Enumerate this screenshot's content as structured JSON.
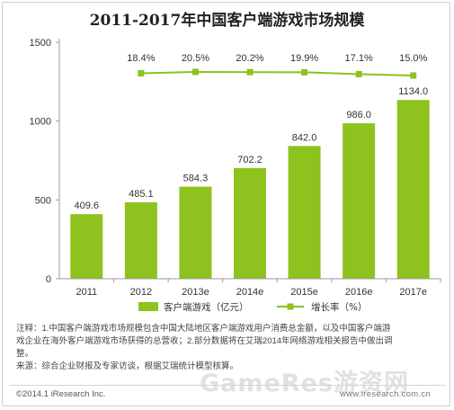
{
  "header": {
    "title": "2011-2017年中国客户端游戏市场规模"
  },
  "colors": {
    "bar": "#8dc21f",
    "line": "#8dc21f",
    "axis": "#999999"
  },
  "chart_data": {
    "type": "bar",
    "title": "2011-2017年中国客户端游戏市场规模",
    "categories": [
      "2011",
      "2012",
      "2013e",
      "2014e",
      "2015e",
      "2016e",
      "2017e"
    ],
    "yticks": [
      "0",
      "500",
      "1000",
      "1500"
    ],
    "ylim": [
      0,
      1500
    ],
    "series": [
      {
        "name": "客户端游戏（亿元）",
        "type": "bar",
        "values": [
          409.6,
          485.1,
          584.3,
          702.2,
          842.0,
          986.0,
          1134.0
        ],
        "labels": [
          "409.6",
          "485.1",
          "584.3",
          "702.2",
          "842.0",
          "986.0",
          "1134.0"
        ]
      },
      {
        "name": "增长率（%）",
        "type": "line",
        "values": [
          null,
          18.4,
          20.5,
          20.2,
          19.9,
          17.1,
          15.0
        ],
        "labels": [
          "",
          "18.4%",
          "20.5%",
          "20.2%",
          "19.9%",
          "17.1%",
          "15.0%"
        ]
      }
    ],
    "legend": {
      "bar_label": "客户端游戏（亿元）",
      "line_label": "增长率（%）"
    }
  },
  "notes": {
    "line1": "注释：1.中国客户端游戏市场规模包含中国大陆地区客户端游戏用户消费总金额，以及中国客户端游",
    "line2": "戏企业在海外客户端游戏市场获得的总营收；2.部分数据将在艾瑞2014年网络游戏相关报告中做出调",
    "line3": "整。",
    "source": "来源：综合企业财报及专家访谈，根据艾瑞统计模型核算。"
  },
  "footer": {
    "copyright": "©2014.1 iResearch Inc.",
    "site": "www.iresearch.com.cn",
    "watermark": "GameRes游资网"
  }
}
